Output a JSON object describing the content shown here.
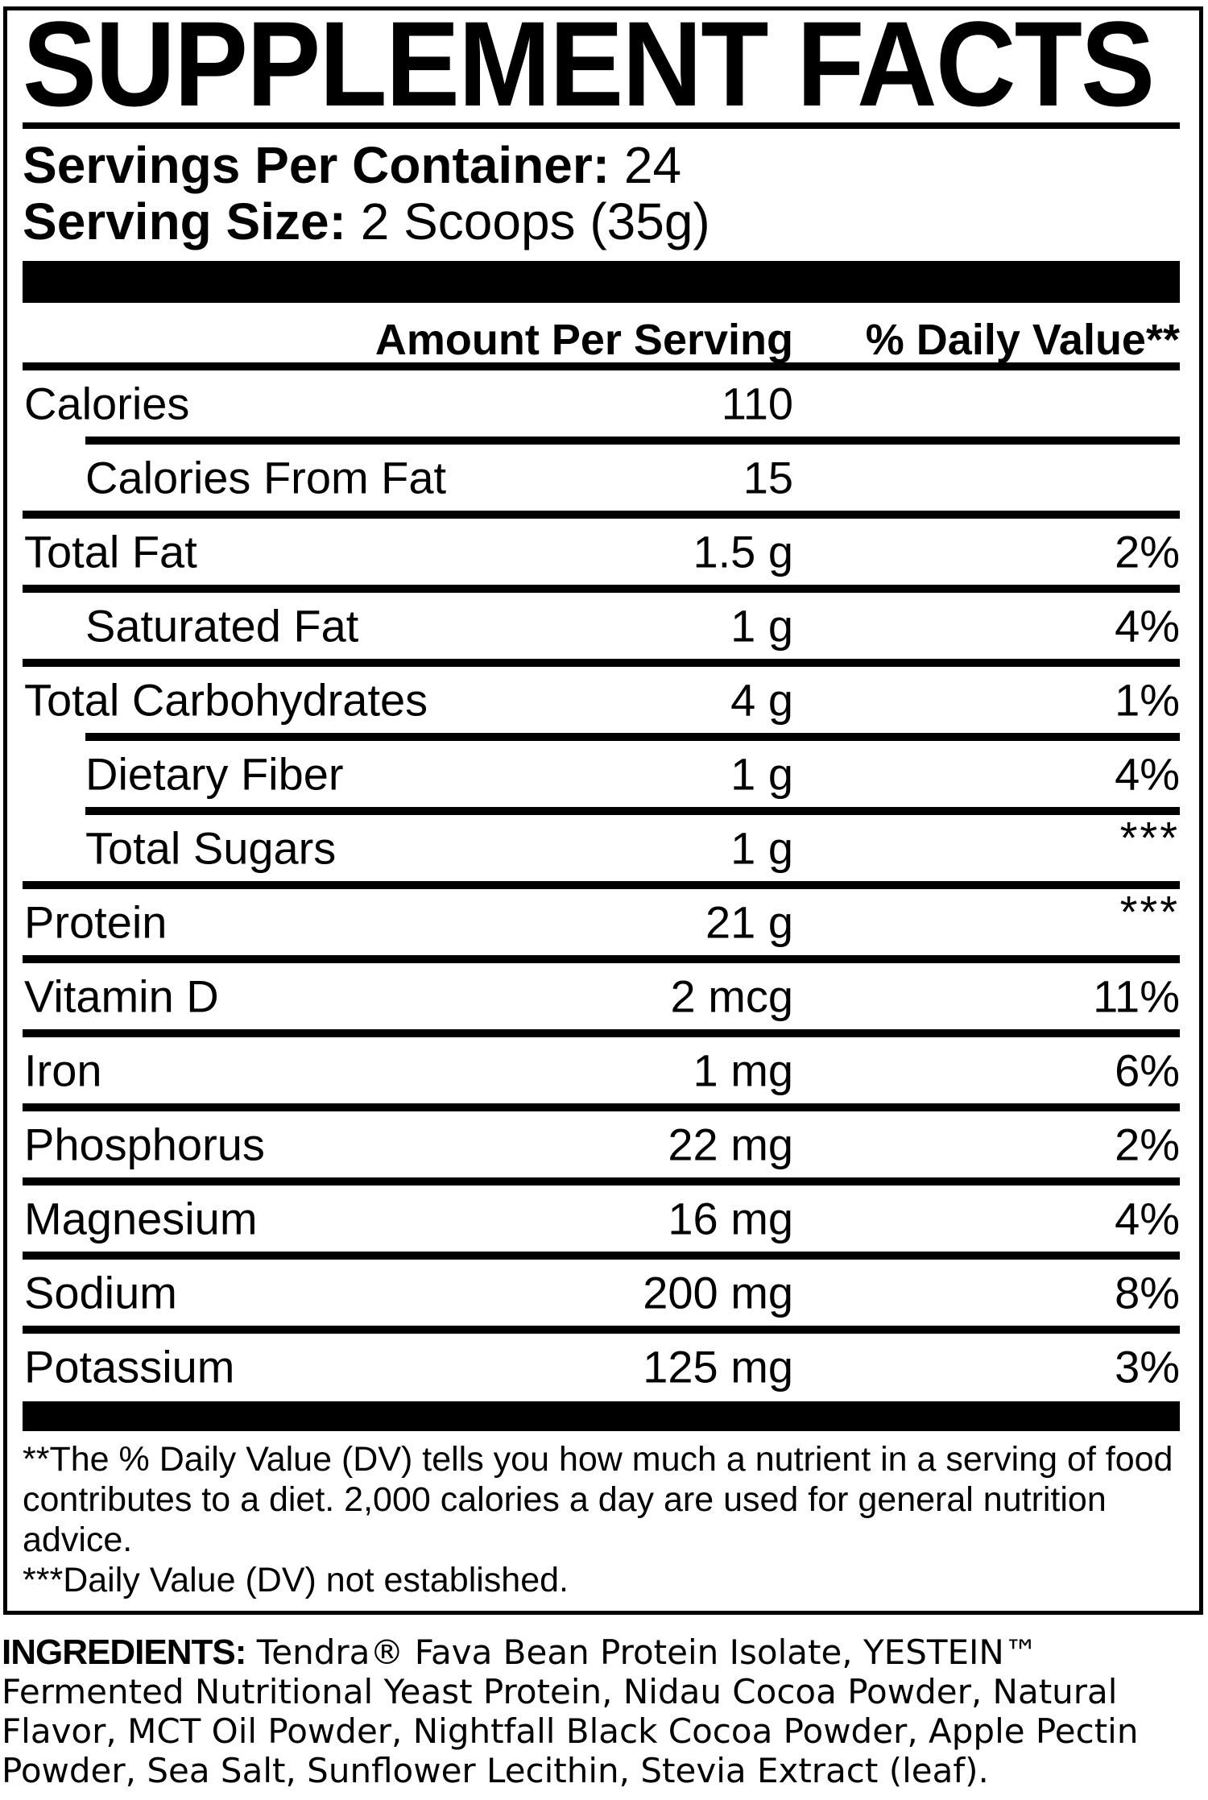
{
  "title": "SUPPLEMENT FACTS",
  "servings": {
    "label": "Servings Per Container:",
    "value": "24"
  },
  "serving_size": {
    "label": "Serving Size:",
    "value": "2 Scoops (35g)"
  },
  "table": {
    "col_amount": "Amount Per Serving",
    "col_dv": "% Daily Value**",
    "rows": [
      {
        "label": "Calories",
        "amount": "110",
        "dv": "",
        "indent": false
      },
      {
        "label": "Calories From Fat",
        "amount": "15",
        "dv": "",
        "indent": true
      },
      {
        "label": "Total Fat",
        "amount": "1.5 g",
        "dv": "2%",
        "indent": false
      },
      {
        "label": "Saturated Fat",
        "amount": "1 g",
        "dv": "4%",
        "indent": true
      },
      {
        "label": "Total Carbohydrates",
        "amount": "4 g",
        "dv": "1%",
        "indent": false
      },
      {
        "label": "Dietary Fiber",
        "amount": "1 g",
        "dv": "4%",
        "indent": true
      },
      {
        "label": "Total Sugars",
        "amount": "1 g",
        "dv": "***",
        "indent": true
      },
      {
        "label": "Protein",
        "amount": "21 g",
        "dv": "***",
        "indent": false
      },
      {
        "label": "Vitamin D",
        "amount": "2 mcg",
        "dv": "11%",
        "indent": false
      },
      {
        "label": "Iron",
        "amount": "1 mg",
        "dv": "6%",
        "indent": false
      },
      {
        "label": "Phosphorus",
        "amount": "22 mg",
        "dv": "2%",
        "indent": false
      },
      {
        "label": "Magnesium",
        "amount": "16 mg",
        "dv": "4%",
        "indent": false
      },
      {
        "label": "Sodium",
        "amount": "200 mg",
        "dv": "8%",
        "indent": false
      },
      {
        "label": "Potassium",
        "amount": "125 mg",
        "dv": "3%",
        "indent": false
      }
    ]
  },
  "footnote": {
    "dv_note": "**The % Daily Value (DV) tells you how much a nutrient in a serving of food contributes to a diet. 2,000 calories a day are used for general nutrition advice.",
    "not_established_note": "***Daily Value (DV) not established."
  },
  "ingredients": {
    "label": "INGREDIENTS:",
    "text": " Tendra® Fava Bean Protein Isolate, YESTEIN™ Fermented Nutritional Yeast Protein, Nidau Cocoa Powder, Natural Flavor, MCT Oil Powder, Nightfall Black Cocoa Powder, Apple Pectin Powder, Sea Salt, Sunflower Lecithin, Stevia Extract (leaf)."
  },
  "colors": {
    "text": "#000000",
    "background": "#ffffff"
  }
}
